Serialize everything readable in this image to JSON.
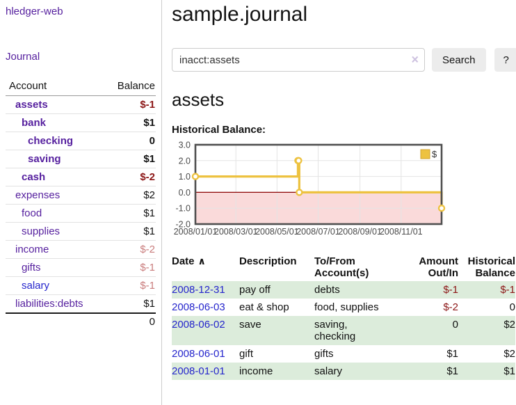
{
  "app": {
    "title": "hledger-web"
  },
  "icons": {
    "clear_search": "×",
    "sort_ascending": "∧"
  },
  "colors": {
    "link_purple": "#551f9e",
    "link_blue": "#2525cc",
    "negative_strong": "#8c1616",
    "negative_muted": "#c97c7c",
    "row_stripe_green": "#dcecdb",
    "chart_gold": "#edc240",
    "chart_negative_bg": "#fadada",
    "chart_zero_line": "#8b0000",
    "button_bg": "#ececec"
  },
  "sidebar": {
    "journal_label": "Journal",
    "accounts": {
      "header_account": "Account",
      "header_balance": "Balance",
      "rows": [
        {
          "account": "assets",
          "balance": "$-1",
          "indent": 1,
          "bold": true,
          "balance_style": "neg-strong",
          "link_color": "purple"
        },
        {
          "account": "bank",
          "balance": "$1",
          "indent": 2,
          "bold": true,
          "balance_style": "",
          "link_color": "purple"
        },
        {
          "account": "checking",
          "balance": "0",
          "indent": 3,
          "bold": true,
          "balance_style": "",
          "link_color": "purple"
        },
        {
          "account": "saving",
          "balance": "$1",
          "indent": 3,
          "bold": true,
          "balance_style": "",
          "link_color": "purple"
        },
        {
          "account": "cash",
          "balance": "$-2",
          "indent": 2,
          "bold": true,
          "balance_style": "neg-strong",
          "link_color": "purple"
        },
        {
          "account": "expenses",
          "balance": "$2",
          "indent": 1,
          "bold": false,
          "balance_style": "",
          "link_color": "purple"
        },
        {
          "account": "food",
          "balance": "$1",
          "indent": 2,
          "bold": false,
          "balance_style": "",
          "link_color": "purple"
        },
        {
          "account": "supplies",
          "balance": "$1",
          "indent": 2,
          "bold": false,
          "balance_style": "",
          "link_color": "purple"
        },
        {
          "account": "income",
          "balance": "$-2",
          "indent": 1,
          "bold": false,
          "balance_style": "neg-muted",
          "link_color": "purple"
        },
        {
          "account": "gifts",
          "balance": "$-1",
          "indent": 2,
          "bold": false,
          "balance_style": "neg-muted",
          "link_color": "purple"
        },
        {
          "account": "salary",
          "balance": "$-1",
          "indent": 2,
          "bold": false,
          "balance_style": "neg-muted",
          "link_color": "blue"
        },
        {
          "account": "liabilities:debts",
          "balance": "$1",
          "indent": 1,
          "bold": false,
          "balance_style": "",
          "link_color": "purple"
        }
      ],
      "total": "0"
    }
  },
  "main": {
    "title": "sample.journal",
    "search": {
      "value": "inacct:assets",
      "button_label": "Search",
      "help_label": "?"
    },
    "account_heading": "assets",
    "chart_title": "Historical Balance:"
  },
  "chart_data": {
    "type": "line",
    "step": true,
    "title": "Historical Balance:",
    "series": [
      {
        "name": "$",
        "points": [
          [
            "2008-01-01",
            1
          ],
          [
            "2008-06-01",
            2
          ],
          [
            "2008-06-02",
            2
          ],
          [
            "2008-06-03",
            0
          ],
          [
            "2008-12-31",
            -1
          ]
        ]
      }
    ],
    "x_range": [
      "2008-01-01",
      "2008-12-31"
    ],
    "xticks": [
      "2008/01/01",
      "2008/03/01",
      "2008/05/01",
      "2008/07/01",
      "2008/09/01",
      "2008/11/01"
    ],
    "yticks": [
      3.0,
      2.0,
      1.0,
      0.0,
      -1.0,
      -2.0
    ],
    "ylim": [
      -2,
      3
    ],
    "grid": true,
    "legend_position": "top-right",
    "negative_region_shaded": true
  },
  "register": {
    "columns": [
      "Date",
      "Description",
      "To/From Account(s)",
      "Amount Out/In",
      "Historical Balance"
    ],
    "rows": [
      {
        "date": "2008-12-31",
        "description": "pay off",
        "accounts": "debts",
        "amount": "$-1",
        "balance": "$-1"
      },
      {
        "date": "2008-06-03",
        "description": "eat & shop",
        "accounts": "food, supplies",
        "amount": "$-2",
        "balance": "0"
      },
      {
        "date": "2008-06-02",
        "description": "save",
        "accounts": "saving, checking",
        "amount": "0",
        "balance": "$2"
      },
      {
        "date": "2008-06-01",
        "description": "gift",
        "accounts": "gifts",
        "amount": "$1",
        "balance": "$2"
      },
      {
        "date": "2008-01-01",
        "description": "income",
        "accounts": "salary",
        "amount": "$1",
        "balance": "$1"
      }
    ]
  }
}
